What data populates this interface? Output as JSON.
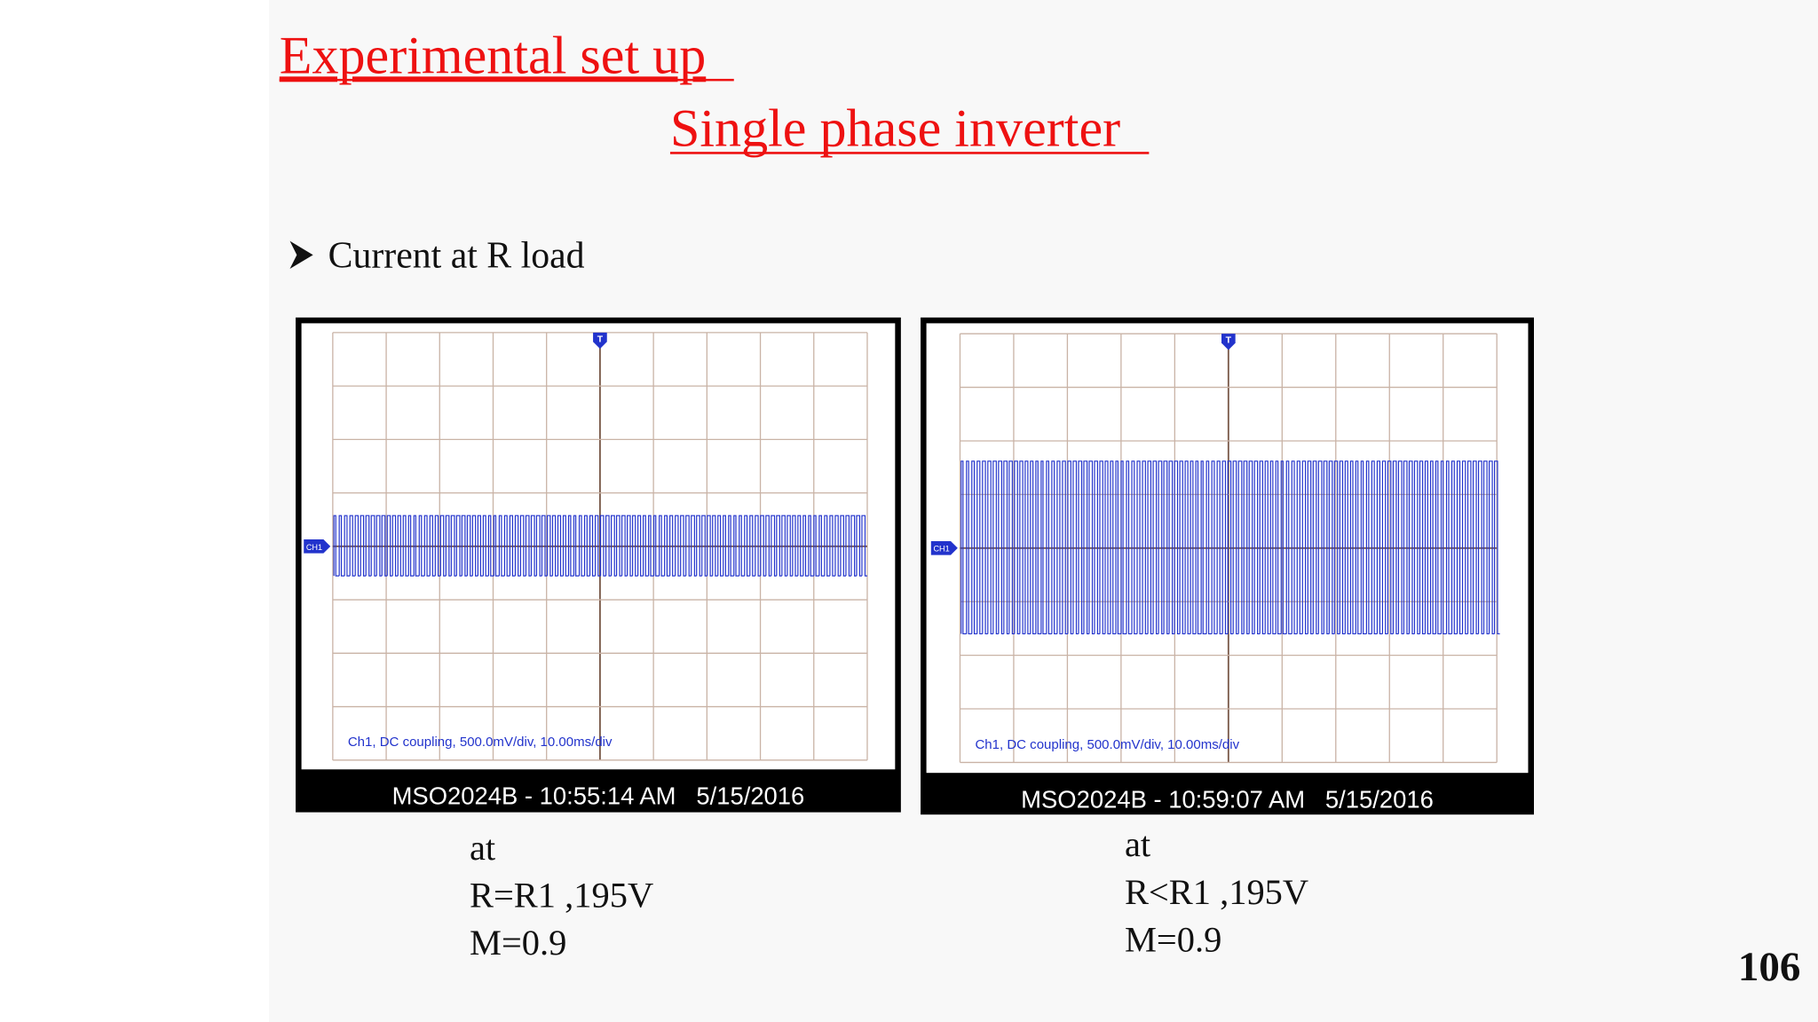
{
  "header": {
    "title": "Experimental set up",
    "subtitle": "Single phase inverter"
  },
  "bullet": "Current at R load",
  "scopes": [
    {
      "channel": "CH1",
      "trigger": "T",
      "settings": "Ch1, DC coupling, 500.0mV/div, 10.00ms/div",
      "footer": "MSO2024B - 10:55:14 AM   5/15/2016",
      "caption": [
        "at",
        "R=R1 ,195V",
        "M=0.9"
      ]
    },
    {
      "channel": "CH1",
      "trigger": "T",
      "settings": "Ch1, DC coupling, 500.0mV/div, 10.00ms/div",
      "footer": "MSO2024B - 10:59:07 AM   5/15/2016",
      "caption": [
        "at",
        "R<R1 ,195V",
        "M=0.9"
      ]
    }
  ],
  "page_number": "106"
}
